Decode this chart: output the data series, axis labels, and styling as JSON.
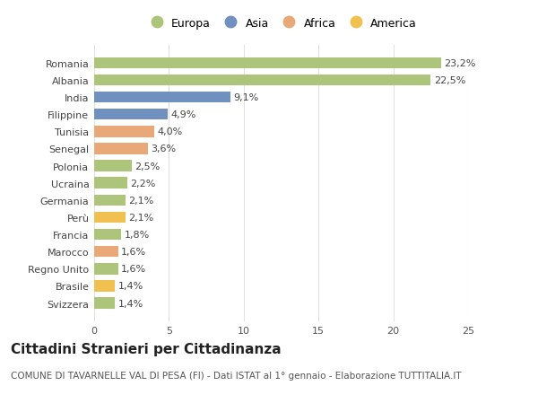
{
  "categories": [
    "Svizzera",
    "Brasile",
    "Regno Unito",
    "Marocco",
    "Francia",
    "Perù",
    "Germania",
    "Ucraina",
    "Polonia",
    "Senegal",
    "Tunisia",
    "Filippine",
    "India",
    "Albania",
    "Romania"
  ],
  "values": [
    1.4,
    1.4,
    1.6,
    1.6,
    1.8,
    2.1,
    2.1,
    2.2,
    2.5,
    3.6,
    4.0,
    4.9,
    9.1,
    22.5,
    23.2
  ],
  "colors": [
    "#adc57a",
    "#f0c050",
    "#adc57a",
    "#e8a878",
    "#adc57a",
    "#f0c050",
    "#adc57a",
    "#adc57a",
    "#adc57a",
    "#e8a878",
    "#e8a878",
    "#7090c0",
    "#7090c0",
    "#adc57a",
    "#adc57a"
  ],
  "labels": [
    "1,4%",
    "1,4%",
    "1,6%",
    "1,6%",
    "1,8%",
    "2,1%",
    "2,1%",
    "2,2%",
    "2,5%",
    "3,6%",
    "4,0%",
    "4,9%",
    "9,1%",
    "22,5%",
    "23,2%"
  ],
  "legend_names": [
    "Europa",
    "Asia",
    "Africa",
    "America"
  ],
  "legend_colors": [
    "#adc57a",
    "#7090c0",
    "#e8a878",
    "#f0c050"
  ],
  "title": "Cittadini Stranieri per Cittadinanza",
  "subtitle": "COMUNE DI TAVARNELLE VAL DI PESA (FI) - Dati ISTAT al 1° gennaio - Elaborazione TUTTITALIA.IT",
  "xlim": [
    0,
    25
  ],
  "xticks": [
    0,
    5,
    10,
    15,
    20,
    25
  ],
  "background_color": "#ffffff",
  "plot_bg_color": "#ffffff",
  "grid_color": "#e0e0e0",
  "title_fontsize": 11,
  "subtitle_fontsize": 7.5,
  "label_fontsize": 8,
  "tick_fontsize": 8,
  "legend_fontsize": 9
}
